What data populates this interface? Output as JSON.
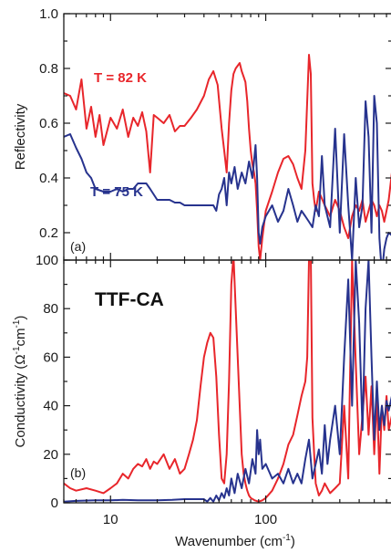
{
  "colors": {
    "series_82K": "#e8262b",
    "series_75K": "#27338e",
    "axis": "#1a1a1a"
  },
  "chart_data": [
    {
      "type": "line",
      "panel_tag": "(a)",
      "ylabel": "Reflectivity",
      "xscale": "log",
      "xlim": [
        5,
        650
      ],
      "ylim": [
        0.1,
        1.0
      ],
      "yticks": [
        "0.2",
        "0.4",
        "0.6",
        "0.8",
        "1.0"
      ],
      "grid": false,
      "series": [
        {
          "name": "T = 82 K",
          "color": "#e8262b",
          "x": [
            5,
            5.5,
            6,
            6.5,
            7,
            7.5,
            8,
            8.5,
            9,
            10,
            11,
            12,
            13,
            14,
            15,
            16,
            17,
            18,
            19,
            20,
            22,
            24,
            26,
            28,
            30,
            33,
            36,
            40,
            43,
            46,
            49,
            52,
            54,
            56,
            58,
            60,
            62,
            64,
            66,
            68,
            70,
            72,
            74,
            76,
            78,
            80,
            82,
            84,
            86,
            88,
            90,
            92,
            95,
            100,
            110,
            120,
            130,
            140,
            150,
            160,
            170,
            180,
            190,
            195,
            200,
            205,
            210,
            220,
            240,
            260,
            280,
            300,
            320,
            340,
            360,
            380,
            400,
            420,
            440,
            460,
            480,
            500,
            520,
            540,
            560,
            580,
            600,
            620,
            650
          ],
          "y": [
            0.71,
            0.7,
            0.65,
            0.76,
            0.58,
            0.66,
            0.55,
            0.63,
            0.52,
            0.62,
            0.58,
            0.65,
            0.55,
            0.62,
            0.59,
            0.64,
            0.57,
            0.42,
            0.63,
            0.62,
            0.6,
            0.63,
            0.57,
            0.59,
            0.59,
            0.62,
            0.65,
            0.7,
            0.76,
            0.79,
            0.74,
            0.58,
            0.5,
            0.42,
            0.6,
            0.72,
            0.78,
            0.8,
            0.81,
            0.82,
            0.79,
            0.77,
            0.75,
            0.68,
            0.58,
            0.5,
            0.45,
            0.42,
            0.38,
            0.28,
            0.15,
            0.1,
            0.18,
            0.28,
            0.35,
            0.42,
            0.47,
            0.48,
            0.45,
            0.4,
            0.36,
            0.5,
            0.85,
            0.78,
            0.38,
            0.32,
            0.28,
            0.35,
            0.3,
            0.26,
            0.32,
            0.28,
            0.22,
            0.18,
            0.26,
            0.3,
            0.28,
            0.32,
            0.24,
            0.28,
            0.32,
            0.3,
            0.26,
            0.3,
            0.28,
            0.24,
            0.28,
            0.32,
            0.42
          ]
        },
        {
          "name": "T = 75 K",
          "color": "#27338e",
          "x": [
            5,
            5.5,
            6,
            6.5,
            7,
            7.5,
            8,
            9,
            10,
            11,
            12,
            13,
            14,
            15,
            16,
            17,
            18,
            20,
            22,
            24,
            26,
            28,
            30,
            33,
            36,
            40,
            43,
            46,
            48,
            50,
            52,
            54,
            56,
            58,
            60,
            63,
            66,
            70,
            74,
            78,
            82,
            86,
            88,
            90,
            92,
            95,
            100,
            110,
            120,
            130,
            140,
            150,
            160,
            170,
            180,
            190,
            200,
            210,
            220,
            230,
            240,
            260,
            280,
            300,
            320,
            340,
            360,
            380,
            400,
            420,
            440,
            460,
            480,
            500,
            520,
            540,
            560,
            580,
            600,
            620,
            650
          ],
          "y": [
            0.55,
            0.56,
            0.51,
            0.47,
            0.42,
            0.4,
            0.36,
            0.35,
            0.35,
            0.36,
            0.35,
            0.36,
            0.36,
            0.38,
            0.38,
            0.38,
            0.36,
            0.32,
            0.32,
            0.32,
            0.31,
            0.31,
            0.3,
            0.3,
            0.3,
            0.3,
            0.3,
            0.3,
            0.28,
            0.34,
            0.36,
            0.4,
            0.3,
            0.42,
            0.38,
            0.44,
            0.36,
            0.42,
            0.38,
            0.46,
            0.4,
            0.52,
            0.4,
            0.2,
            0.16,
            0.22,
            0.26,
            0.3,
            0.24,
            0.28,
            0.36,
            0.3,
            0.24,
            0.28,
            0.26,
            0.24,
            0.22,
            0.3,
            0.26,
            0.48,
            0.3,
            0.22,
            0.58,
            0.2,
            0.56,
            0.3,
            0.1,
            0.4,
            0.22,
            0.3,
            0.68,
            0.55,
            0.2,
            0.7,
            0.6,
            0.18,
            0.05,
            0.14,
            0.18,
            0.2,
            0.19
          ]
        }
      ]
    },
    {
      "type": "line",
      "panel_tag": "(b)",
      "annotation": "TTF-CA",
      "ylabel": "Conductivity (Ω",
      "ylabel_sup1": "-1",
      "ylabel_mid": "cm",
      "ylabel_sup2": "-1",
      "ylabel_end": ")",
      "xlabel": "Wavenumber (cm",
      "xlabel_sup": "-1",
      "xlabel_end": ")",
      "xscale": "log",
      "xlim": [
        5,
        650
      ],
      "ylim": [
        0,
        100
      ],
      "yticks": [
        "0",
        "20",
        "40",
        "60",
        "80",
        "100"
      ],
      "xticks": [
        "10",
        "100"
      ],
      "grid": false,
      "series": [
        {
          "name": "T = 82 K",
          "color": "#e8262b",
          "x": [
            5,
            5.5,
            6,
            7,
            8,
            9,
            10,
            11,
            12,
            13,
            14,
            15,
            16,
            17,
            18,
            19,
            20,
            22,
            24,
            26,
            28,
            30,
            32,
            34,
            36,
            38,
            40,
            42,
            44,
            46,
            48,
            50,
            52,
            54,
            56,
            58,
            60,
            62,
            64,
            66,
            68,
            70,
            72,
            74,
            76,
            78,
            80,
            85,
            90,
            95,
            100,
            110,
            120,
            130,
            140,
            150,
            160,
            170,
            180,
            185,
            190,
            195,
            200,
            205,
            210,
            220,
            230,
            240,
            260,
            280,
            300,
            320,
            340,
            360,
            380,
            400,
            420,
            440,
            460,
            480,
            500,
            520,
            540,
            560,
            580,
            600,
            620,
            650
          ],
          "y": [
            8,
            6,
            5,
            6,
            5,
            4,
            6,
            8,
            12,
            10,
            14,
            16,
            15,
            18,
            14,
            17,
            16,
            20,
            14,
            18,
            12,
            14,
            20,
            26,
            34,
            48,
            60,
            66,
            70,
            68,
            52,
            28,
            10,
            8,
            20,
            50,
            90,
            102,
            80,
            60,
            40,
            20,
            12,
            8,
            5,
            3,
            2,
            1,
            0.5,
            1,
            2,
            5,
            10,
            16,
            24,
            28,
            36,
            44,
            50,
            60,
            100,
            102,
            35,
            20,
            8,
            3,
            5,
            8,
            4,
            6,
            8,
            40,
            10,
            100,
            58,
            20,
            36,
            52,
            28,
            48,
            20,
            44,
            12,
            40,
            30,
            44,
            30,
            36
          ]
        },
        {
          "name": "T = 75 K",
          "color": "#27338e",
          "x": [
            5,
            6,
            8,
            10,
            12,
            15,
            20,
            25,
            30,
            35,
            40,
            42,
            44,
            46,
            48,
            50,
            52,
            54,
            56,
            58,
            60,
            63,
            66,
            70,
            74,
            78,
            82,
            86,
            88,
            90,
            92,
            95,
            100,
            110,
            120,
            130,
            140,
            150,
            160,
            170,
            180,
            190,
            200,
            210,
            220,
            230,
            240,
            250,
            260,
            280,
            300,
            320,
            340,
            360,
            380,
            400,
            420,
            440,
            460,
            480,
            500,
            520,
            540,
            560,
            580,
            600,
            620,
            650
          ],
          "y": [
            0.5,
            0.8,
            1,
            1,
            1.2,
            1,
            1,
            1.2,
            1.5,
            1.5,
            1.5,
            0.5,
            2,
            0.5,
            3,
            1,
            4,
            2,
            6,
            3,
            10,
            4,
            12,
            6,
            14,
            8,
            18,
            12,
            30,
            20,
            26,
            14,
            16,
            10,
            12,
            8,
            14,
            8,
            12,
            8,
            18,
            26,
            10,
            16,
            22,
            12,
            32,
            16,
            26,
            40,
            20,
            60,
            92,
            40,
            100,
            74,
            30,
            80,
            100,
            60,
            26,
            50,
            30,
            40,
            32,
            42,
            38,
            44
          ]
        }
      ]
    }
  ]
}
